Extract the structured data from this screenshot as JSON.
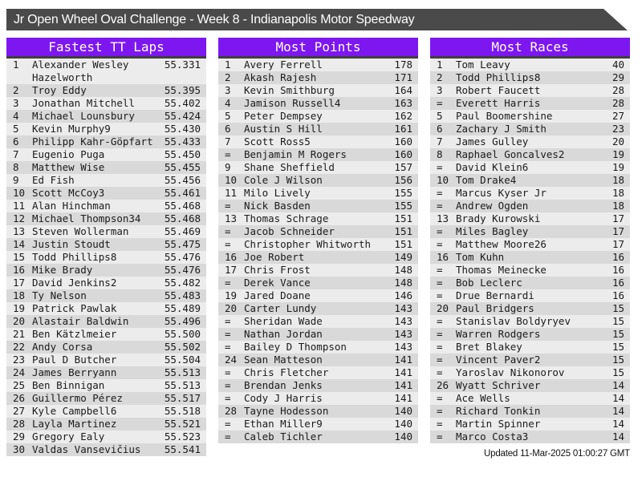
{
  "title": "Jr Open Wheel Oval Challenge - Week 8 - Indianapolis Motor Speedway",
  "footer": {
    "updated": "Updated 11-Mar-2025 01:00:27 GMT"
  },
  "colors": {
    "accent": "#7d17f0",
    "titlebar_bg": "#4a4a4a",
    "table_top_border": "#3f3f3f",
    "stripe_light": "#ececec",
    "stripe_dark": "#d9d9d9"
  },
  "tables": [
    {
      "header": "Fastest TT Laps",
      "rows": [
        {
          "rank": "1",
          "name": "Alexander Wesley Hazelworth",
          "value": "55.331"
        },
        {
          "rank": "2",
          "name": "Troy Eddy",
          "value": "55.395"
        },
        {
          "rank": "3",
          "name": "Jonathan Mitchell",
          "value": "55.402"
        },
        {
          "rank": "4",
          "name": "Michael Lounsbury",
          "value": "55.424"
        },
        {
          "rank": "5",
          "name": "Kevin Murphy9",
          "value": "55.430"
        },
        {
          "rank": "6",
          "name": "Philipp Kahr-Göpfart",
          "value": "55.433"
        },
        {
          "rank": "7",
          "name": "Eugenio Puga",
          "value": "55.450"
        },
        {
          "rank": "8",
          "name": "Matthew Wise",
          "value": "55.455"
        },
        {
          "rank": "9",
          "name": "Ed Fish",
          "value": "55.456"
        },
        {
          "rank": "10",
          "name": "Scott McCoy3",
          "value": "55.461"
        },
        {
          "rank": "11",
          "name": "Alan Hinchman",
          "value": "55.468"
        },
        {
          "rank": "12",
          "name": "Michael Thompson34",
          "value": "55.468"
        },
        {
          "rank": "13",
          "name": "Steven Wollerman",
          "value": "55.469"
        },
        {
          "rank": "14",
          "name": "Justin Stoudt",
          "value": "55.475"
        },
        {
          "rank": "15",
          "name": "Todd Phillips8",
          "value": "55.476"
        },
        {
          "rank": "16",
          "name": "Mike Brady",
          "value": "55.476"
        },
        {
          "rank": "17",
          "name": "David Jenkins2",
          "value": "55.482"
        },
        {
          "rank": "18",
          "name": "Ty Nelson",
          "value": "55.483"
        },
        {
          "rank": "19",
          "name": "Patrick Pawlak",
          "value": "55.489"
        },
        {
          "rank": "20",
          "name": "Alastair Baldwin",
          "value": "55.496"
        },
        {
          "rank": "21",
          "name": "Ben Kätzlmeier",
          "value": "55.500"
        },
        {
          "rank": "22",
          "name": "Andy Corsa",
          "value": "55.502"
        },
        {
          "rank": "23",
          "name": "Paul D Butcher",
          "value": "55.504"
        },
        {
          "rank": "24",
          "name": "James Berryann",
          "value": "55.513"
        },
        {
          "rank": "25",
          "name": "Ben Binnigan",
          "value": "55.513"
        },
        {
          "rank": "26",
          "name": "Guillermo Pérez",
          "value": "55.517"
        },
        {
          "rank": "27",
          "name": "Kyle Campbell6",
          "value": "55.518"
        },
        {
          "rank": "28",
          "name": "Layla Martinez",
          "value": "55.521"
        },
        {
          "rank": "29",
          "name": "Gregory Ealy",
          "value": "55.523"
        },
        {
          "rank": "30",
          "name": "Valdas Vansevičius",
          "value": "55.541"
        }
      ]
    },
    {
      "header": "Most Points",
      "rows": [
        {
          "rank": "1",
          "name": "Avery Ferrell",
          "value": "178"
        },
        {
          "rank": "2",
          "name": "Akash Rajesh",
          "value": "171"
        },
        {
          "rank": "3",
          "name": "Kevin Smithburg",
          "value": "164"
        },
        {
          "rank": "4",
          "name": "Jamison Russell4",
          "value": "163"
        },
        {
          "rank": "5",
          "name": "Peter Dempsey",
          "value": "162"
        },
        {
          "rank": "6",
          "name": "Austin S Hill",
          "value": "161"
        },
        {
          "rank": "7",
          "name": "Scott Ross5",
          "value": "160"
        },
        {
          "rank": "=",
          "name": "Benjamin M Rogers",
          "value": "160"
        },
        {
          "rank": "9",
          "name": "Shane Sheffield",
          "value": "157"
        },
        {
          "rank": "10",
          "name": "Cole J Wilson",
          "value": "156"
        },
        {
          "rank": "11",
          "name": "Milo Lively",
          "value": "155"
        },
        {
          "rank": "=",
          "name": "Nick Basden",
          "value": "155"
        },
        {
          "rank": "13",
          "name": "Thomas Schrage",
          "value": "151"
        },
        {
          "rank": "=",
          "name": "Jacob Schneider",
          "value": "151"
        },
        {
          "rank": "=",
          "name": "Christopher Whitworth",
          "value": "151"
        },
        {
          "rank": "16",
          "name": "Joe Robert",
          "value": "149"
        },
        {
          "rank": "17",
          "name": "Chris Frost",
          "value": "148"
        },
        {
          "rank": "=",
          "name": "Derek Vance",
          "value": "148"
        },
        {
          "rank": "19",
          "name": "Jared Doane",
          "value": "146"
        },
        {
          "rank": "20",
          "name": "Carter Lundy",
          "value": "143"
        },
        {
          "rank": "=",
          "name": "Sheridan Wade",
          "value": "143"
        },
        {
          "rank": "=",
          "name": "Nathan Jordan",
          "value": "143"
        },
        {
          "rank": "=",
          "name": "Bailey D Thompson",
          "value": "143"
        },
        {
          "rank": "24",
          "name": "Sean Matteson",
          "value": "141"
        },
        {
          "rank": "=",
          "name": "Chris Fletcher",
          "value": "141"
        },
        {
          "rank": "=",
          "name": "Brendan Jenks",
          "value": "141"
        },
        {
          "rank": "=",
          "name": "Cody J Harris",
          "value": "141"
        },
        {
          "rank": "28",
          "name": "Tayne Hodesson",
          "value": "140"
        },
        {
          "rank": "=",
          "name": "Ethan Miller9",
          "value": "140"
        },
        {
          "rank": "=",
          "name": "Caleb Tichler",
          "value": "140"
        }
      ]
    },
    {
      "header": "Most Races",
      "rows": [
        {
          "rank": "1",
          "name": "Tom Leavy",
          "value": "40"
        },
        {
          "rank": "2",
          "name": "Todd Phillips8",
          "value": "29"
        },
        {
          "rank": "3",
          "name": "Robert Faucett",
          "value": "28"
        },
        {
          "rank": "=",
          "name": "Everett Harris",
          "value": "28"
        },
        {
          "rank": "5",
          "name": "Paul Boomershine",
          "value": "27"
        },
        {
          "rank": "6",
          "name": "Zachary J Smith",
          "value": "23"
        },
        {
          "rank": "7",
          "name": "James Gulley",
          "value": "20"
        },
        {
          "rank": "8",
          "name": "Raphael Goncalves2",
          "value": "19"
        },
        {
          "rank": "=",
          "name": "David Klein6",
          "value": "19"
        },
        {
          "rank": "10",
          "name": "Tom Drake4",
          "value": "18"
        },
        {
          "rank": "=",
          "name": "Marcus Kyser Jr",
          "value": "18"
        },
        {
          "rank": "=",
          "name": "Andrew Ogden",
          "value": "18"
        },
        {
          "rank": "13",
          "name": "Brady Kurowski",
          "value": "17"
        },
        {
          "rank": "=",
          "name": "Miles Bagley",
          "value": "17"
        },
        {
          "rank": "=",
          "name": "Matthew Moore26",
          "value": "17"
        },
        {
          "rank": "16",
          "name": "Tom Kuhn",
          "value": "16"
        },
        {
          "rank": "=",
          "name": "Thomas Meinecke",
          "value": "16"
        },
        {
          "rank": "=",
          "name": "Bob Leclerc",
          "value": "16"
        },
        {
          "rank": "=",
          "name": "Drue Bernardi",
          "value": "16"
        },
        {
          "rank": "20",
          "name": "Paul Bridgers",
          "value": "15"
        },
        {
          "rank": "=",
          "name": "Stanislav Boldyryev",
          "value": "15"
        },
        {
          "rank": "=",
          "name": "Warren Rodgers",
          "value": "15"
        },
        {
          "rank": "=",
          "name": "Bret Blakey",
          "value": "15"
        },
        {
          "rank": "=",
          "name": "Vincent Paver2",
          "value": "15"
        },
        {
          "rank": "=",
          "name": "Yaroslav Nikonorov",
          "value": "15"
        },
        {
          "rank": "26",
          "name": "Wyatt Schriver",
          "value": "14"
        },
        {
          "rank": "=",
          "name": "Ace Wells",
          "value": "14"
        },
        {
          "rank": "=",
          "name": "Richard Tonkin",
          "value": "14"
        },
        {
          "rank": "=",
          "name": "Martin Spinner",
          "value": "14"
        },
        {
          "rank": "=",
          "name": "Marco Costa3",
          "value": "14"
        }
      ]
    }
  ]
}
